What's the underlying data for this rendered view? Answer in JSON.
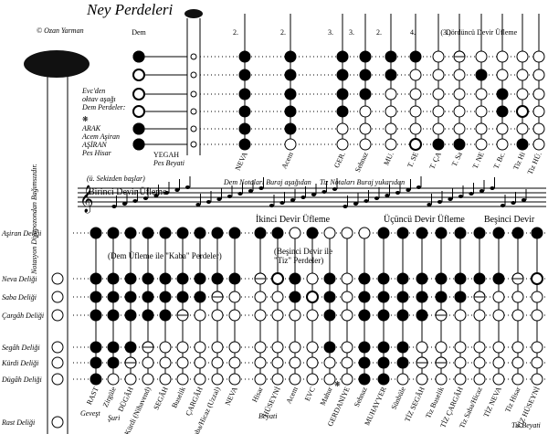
{
  "header": {
    "title": "Ney Perdeleri",
    "author": "© Ozan Yarman",
    "side_note": "Notasyon Diyapozondan Bağımsızdır."
  },
  "top": {
    "register_marks": [
      "Dem",
      "2.",
      "2.",
      "3.",
      "3.",
      "2.",
      "4.",
      "(3.)"
    ],
    "fourth_register": "Dördüncü Devir Üfleme",
    "dem_note": [
      "Evc'den",
      "oktav aşağı",
      "Dem Perdeler:"
    ],
    "star": "❋",
    "dem_notes": [
      "ARAK",
      "Acem Aşiran",
      "AŞİRAN",
      "Pes Hisar"
    ],
    "yegah": "YEGAH",
    "pes_beyati": "Pes Beyati",
    "notes": [
      "NEVA",
      "Acem",
      "GER.",
      "Sehnaz",
      "MU.",
      "T. SE",
      "T. ÇA",
      "T. Sa",
      "T. NE",
      "T. Bc.",
      "Tiz Hi",
      "Tiz HÜ."
    ]
  },
  "staff": {
    "octave_note": "(ü. Sekizden başlar)",
    "first_register": "Birinci Devir Üfleme",
    "low_note": "Dem Notaları Buraj aşağıdan",
    "high_note": "Tiz Notaları Buraj yukarıdan"
  },
  "bottom": {
    "registers": [
      "İkinci Devir Üfleme",
      "Üçüncü Devir Üfleme",
      "Beşinci Devir"
    ],
    "groups": [
      [
        "(Dem Üfleme ile \"Kaba\" Perdeler)"
      ],
      [
        "(Beşinci Devir ile",
        "\"Tiz\" Perdeler)"
      ]
    ],
    "holes": [
      "Aşiran Deliği",
      "Neva Deliği",
      "Saba Deliği",
      "Çargâh Deliği",
      "Segâh Deliği",
      "Kürdi Deliği",
      "Dügâh Deliği",
      "Rast Deliği"
    ],
    "notes": [
      "RAST",
      "Zirgüle",
      "DÜGÂH",
      "Kürdi (Nihavend)",
      "SEGÂH",
      "Buselik",
      "ÇARGÂH",
      "Saba/Hicaz (Uzzal)",
      "NEVA",
      "Hisar",
      "HÜSEYNİ",
      "Acem",
      "EVC",
      "Mahur",
      "GERDANİYE",
      "Sehnaz",
      "MUHAYYER",
      "Sünbüle",
      "TİZ SEGÂH",
      "Tiz Buselik",
      "TİZ ÇARGÂH",
      "Tiz Saba/Hicaz",
      "TİZ NEVA",
      "Tiz Hisar",
      "TİZ HÜSEYNİ"
    ],
    "sub_notes": [
      "Geveşt",
      "Şuri",
      "Beyati",
      "Tiz Beyati"
    ],
    "star": "❋"
  }
}
